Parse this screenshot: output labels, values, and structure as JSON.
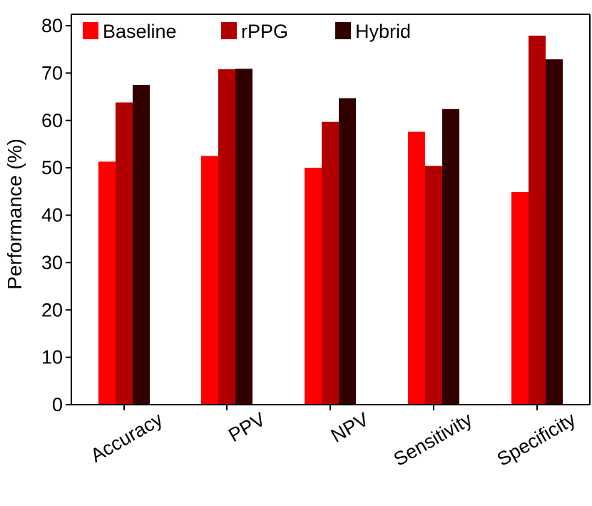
{
  "chart_data": {
    "type": "bar",
    "title": "",
    "xlabel": "",
    "ylabel": "Performance (%)",
    "ylim": [
      0,
      80
    ],
    "yticks": [
      0,
      10,
      20,
      30,
      40,
      50,
      60,
      70,
      80
    ],
    "categories": [
      "Accuracy",
      "PPV",
      "NPV",
      "Sensitivity",
      "Specificity"
    ],
    "series": [
      {
        "name": "Baseline",
        "color": "#ff0000",
        "values": [
          51.3,
          52.5,
          50.0,
          57.6,
          44.9
        ]
      },
      {
        "name": "rPPG",
        "color": "#b20000",
        "values": [
          63.8,
          70.8,
          59.7,
          50.4,
          77.9
        ]
      },
      {
        "name": "Hybrid",
        "color": "#330000",
        "values": [
          67.5,
          70.9,
          64.7,
          62.4,
          72.9
        ]
      }
    ],
    "legend_position": "top",
    "grid": false
  }
}
